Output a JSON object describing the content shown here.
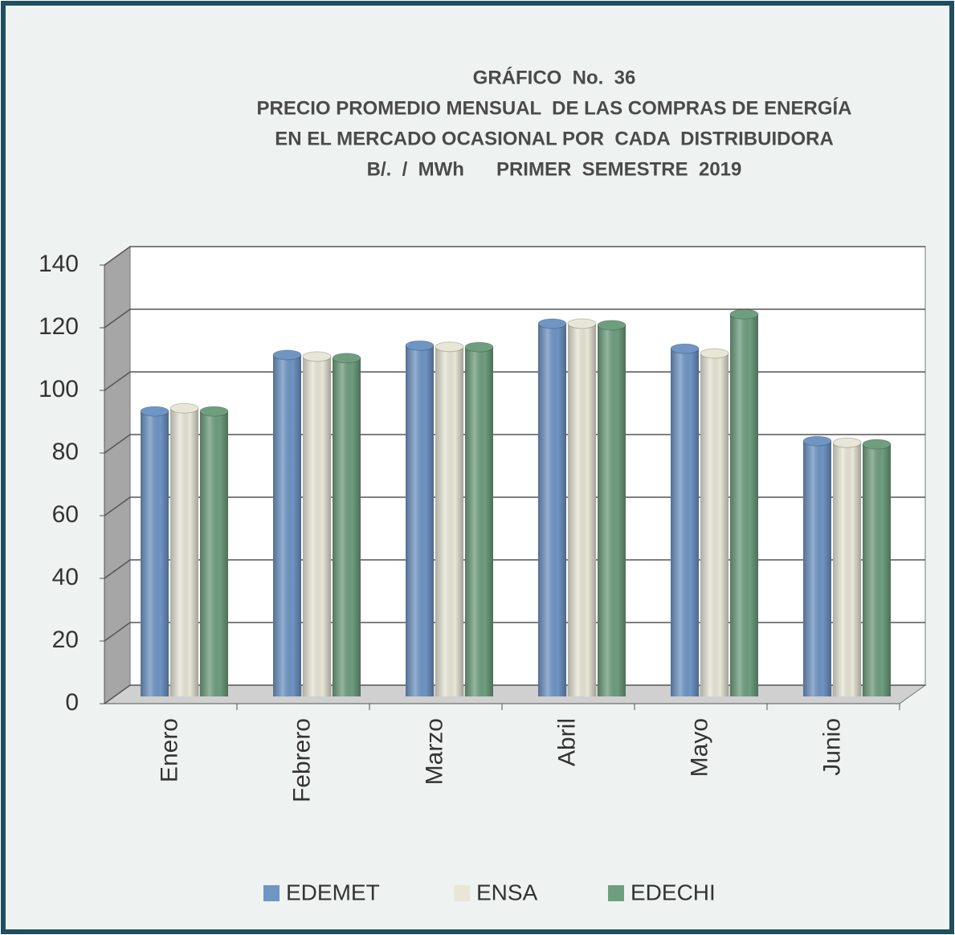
{
  "chart_data": {
    "type": "bar3d",
    "title": [
      "GRÁFICO  No.  36",
      "PRECIO PROMEDIO MENSUAL  DE LAS COMPRAS DE ENERGÍA",
      "EN EL MERCADO OCASIONAL POR  CADA  DISTRIBUIDORA",
      "B/.  /  MWh      PRIMER  SEMESTRE  2019"
    ],
    "categories": [
      "Enero",
      "Febrero",
      "Marzo",
      "Abril",
      "Mayo",
      "Junio"
    ],
    "series": [
      {
        "name": "EDEMET",
        "color": "#6f95c4",
        "values": [
          91,
          109,
          112,
          119,
          111,
          81.5
        ]
      },
      {
        "name": "ENSA",
        "color": "#e8e6d6",
        "values": [
          92,
          108.5,
          111.6,
          119,
          109.5,
          81
        ]
      },
      {
        "name": "EDECHI",
        "color": "#6f9e7f",
        "values": [
          91,
          108,
          111.5,
          118.5,
          122,
          80.5
        ]
      }
    ],
    "ylim": [
      0,
      140
    ],
    "yticks": [
      0,
      20,
      40,
      60,
      80,
      100,
      120,
      140
    ],
    "grid": true,
    "legend": "bottom"
  }
}
